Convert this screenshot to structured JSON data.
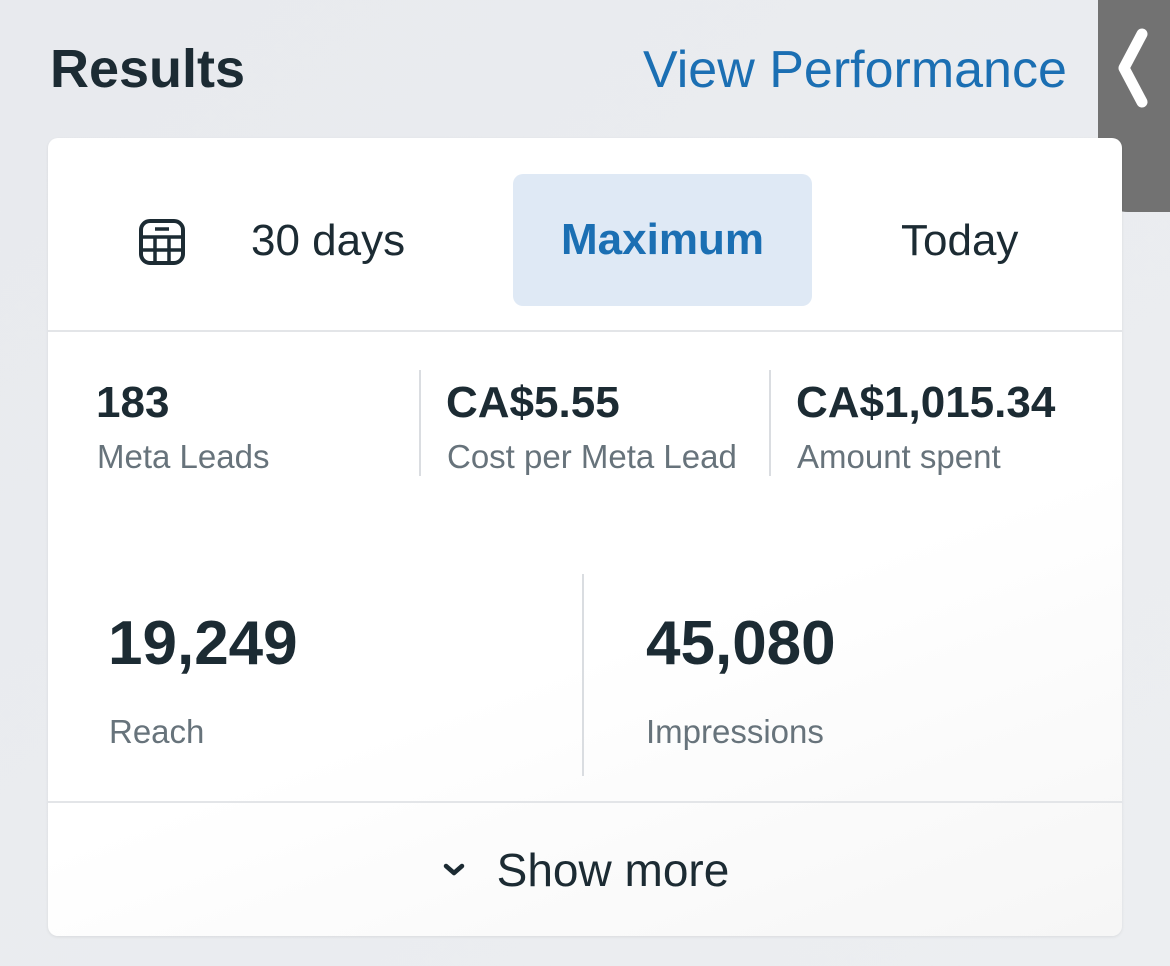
{
  "header": {
    "title": "Results",
    "view_performance": "View Performance"
  },
  "date_tabs": {
    "items": [
      {
        "label": "30 days"
      },
      {
        "label": "Maximum",
        "selected": true
      },
      {
        "label": "Today"
      }
    ]
  },
  "metrics_row1": [
    {
      "value": "183",
      "label": "Meta Leads"
    },
    {
      "value": "CA$5.55",
      "label": "Cost per Meta Lead"
    },
    {
      "value": "CA$1,015.34",
      "label": "Amount spent"
    }
  ],
  "metrics_row2": [
    {
      "value": "19,249",
      "label": "Reach"
    },
    {
      "value": "45,080",
      "label": "Impressions"
    }
  ],
  "show_more": "Show more",
  "colors": {
    "accent": "#1b6fb3",
    "selected_tab_bg": "#dfe9f5",
    "side_tab": "#727272"
  }
}
